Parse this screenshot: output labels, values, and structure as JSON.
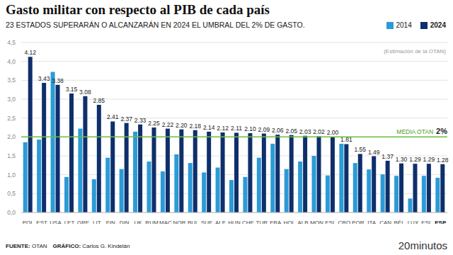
{
  "chart_data": {
    "type": "bar",
    "title": "Gasto militar con respecto al PIB de cada país",
    "subtitle": "23 ESTADOS SUPERARÁN O ALCANZARÁN EN 2024 EL UMBRAL DEL 2% DE GASTO.",
    "categories": [
      "POL",
      "EST",
      "USA",
      "LET",
      "GRE",
      "LIT",
      "FIN",
      "DIN",
      "UK",
      "RUM",
      "MAC",
      "NOR",
      "BUL",
      "SUE",
      "ALE",
      "HUN",
      "CHE",
      "TUR",
      "FRA",
      "HOL",
      "ALB",
      "MON",
      "ESL",
      "CRO",
      "POR",
      "ITA",
      "CAN",
      "BÉL",
      "LUX",
      "ESL",
      "ESP"
    ],
    "series": [
      {
        "name": "2014",
        "color": "#2b9bd8",
        "values": [
          1.86,
          1.93,
          3.72,
          0.94,
          2.22,
          0.88,
          1.45,
          1.15,
          2.14,
          1.35,
          1.09,
          1.54,
          1.31,
          1.06,
          1.19,
          0.86,
          0.94,
          1.45,
          1.82,
          1.15,
          1.35,
          1.5,
          0.98,
          1.82,
          1.31,
          1.14,
          1.01,
          0.97,
          0.37,
          0.97,
          0.92
        ]
      },
      {
        "name": "2024",
        "color": "#0f2f6b",
        "values": [
          4.12,
          3.43,
          3.38,
          3.15,
          3.08,
          2.85,
          2.41,
          2.37,
          2.33,
          2.25,
          2.22,
          2.2,
          2.18,
          2.14,
          2.12,
          2.11,
          2.1,
          2.09,
          2.06,
          2.05,
          2.03,
          2.02,
          2.0,
          1.81,
          1.55,
          1.49,
          1.37,
          1.3,
          1.29,
          1.29,
          1.28
        ],
        "value_labels": [
          "4.12",
          "3.43",
          "3.38",
          "3.15",
          "3.08",
          "2.85",
          "2.41",
          "2.37",
          "2.33",
          "2.25",
          "2.22",
          "2.20",
          "2.18",
          "2.14",
          "2.12",
          "2.11",
          "2.10",
          "2.09",
          "2.06",
          "2.05",
          "2.03",
          "2.02",
          "2.00",
          "1.81",
          "1.55",
          "1.49",
          "1.37",
          "1.30",
          "1.29",
          "1.29",
          "1.28"
        ]
      }
    ],
    "ylim": [
      0,
      4.5
    ],
    "yticks": [
      {
        "value": 0,
        "label": "0,0"
      },
      {
        "value": 0.5,
        "label": "0,5"
      },
      {
        "value": 1,
        "label": "1,0"
      },
      {
        "value": 1.5,
        "label": "1,5"
      },
      {
        "value": 2,
        "label": "2,0"
      },
      {
        "value": 2.5,
        "label": "2,5"
      },
      {
        "value": 3,
        "label": "3,0"
      },
      {
        "value": 3.5,
        "label": "3,5"
      },
      {
        "value": 4,
        "label": "4,0"
      },
      {
        "value": 4.5,
        "label": "4,5"
      }
    ],
    "grid": true,
    "legend": "top right",
    "data_labels": true,
    "legend_note": "(Estimación de la OTAN)",
    "reference_line": {
      "value": 2,
      "label": "MEDIA OTAN",
      "value_label": "2%",
      "color": "#6cbf3c"
    },
    "footer": {
      "source_label": "FUENTE:",
      "source": "OTAN",
      "credit_label": "GRÁFICO:",
      "credit": "Carlos G. Kindelán",
      "brand": "20minutos"
    }
  }
}
